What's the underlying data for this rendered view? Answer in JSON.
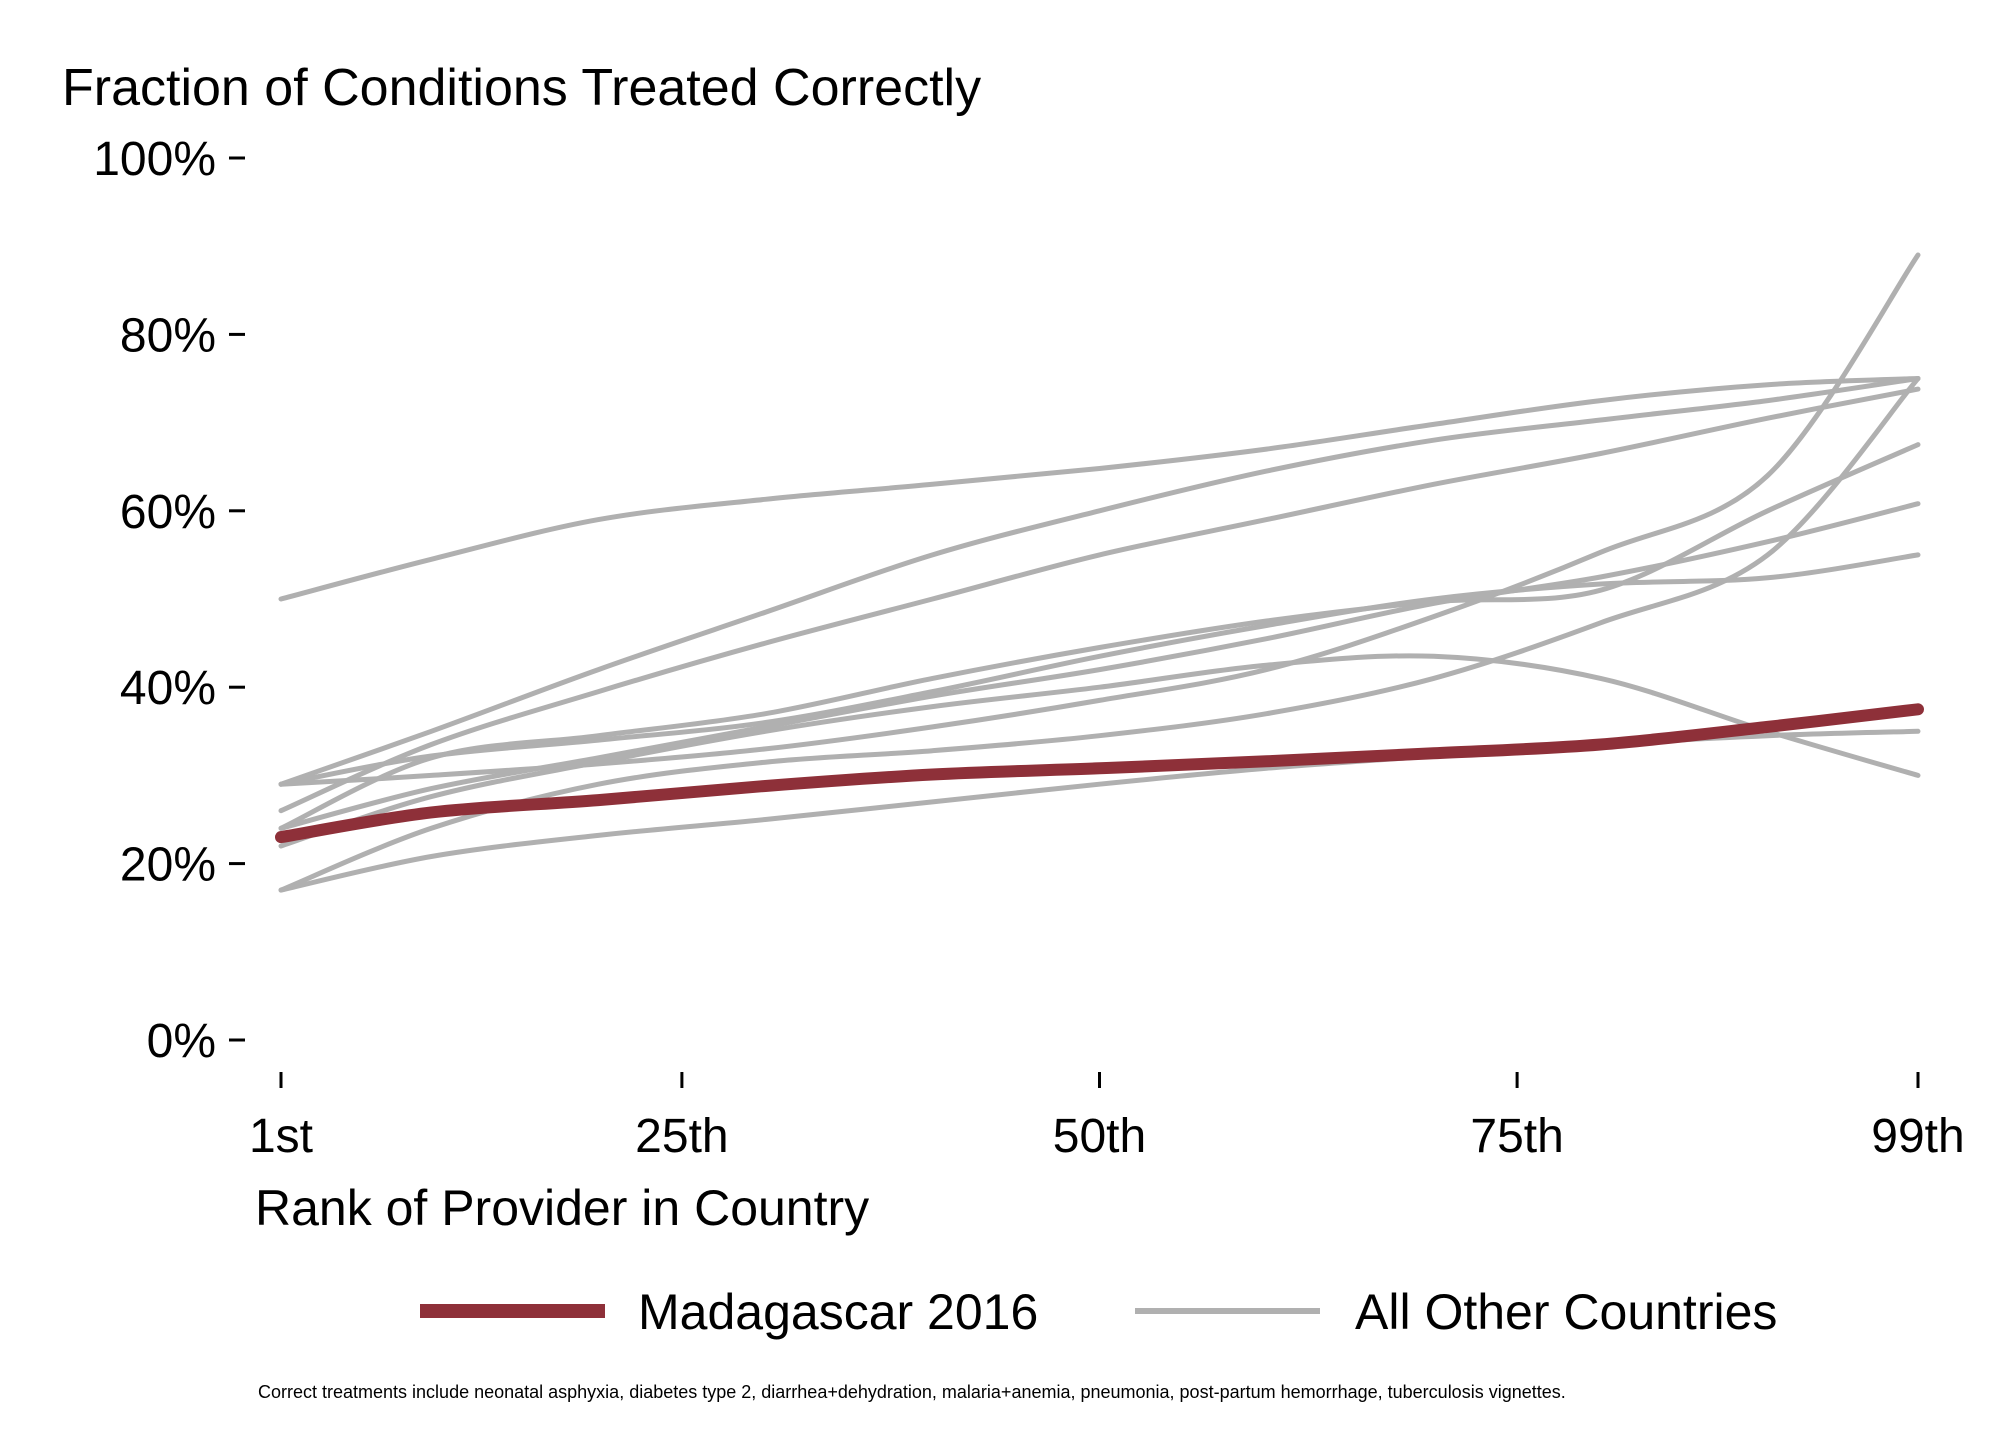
{
  "chart_data": {
    "type": "line",
    "title": "Fraction of Conditions Treated Correctly",
    "xlabel": "Rank of Provider in Country",
    "ylabel": "",
    "x_tick_labels": [
      "1st",
      "25th",
      "50th",
      "75th",
      "99th"
    ],
    "x_ticks": [
      1,
      25,
      50,
      75,
      99
    ],
    "xlim": [
      1,
      99
    ],
    "y_tick_labels": [
      "0%",
      "20%",
      "40%",
      "60%",
      "80%",
      "100%"
    ],
    "y_ticks": [
      0,
      20,
      40,
      60,
      80,
      100
    ],
    "ylim": [
      0,
      100
    ],
    "grid": false,
    "legend_position": "bottom",
    "legend": [
      {
        "label": "Madagascar 2016",
        "color": "#8e3039"
      },
      {
        "label": "All Other Countries",
        "color": "#b0b0b0"
      }
    ],
    "note": "Correct treatments include neonatal asphyxia, diabetes type 2, diarrhea+dehydration, malaria+anemia, pneumonia, post-partum hemorrhage, tuberculosis vignettes.",
    "highlight_series": {
      "name": "Madagascar 2016",
      "color": "#8e3039",
      "x": [
        1,
        10,
        20,
        30,
        40,
        50,
        60,
        70,
        80,
        90,
        99
      ],
      "y": [
        23,
        25.8,
        27.2,
        28.8,
        30.1,
        30.8,
        31.6,
        32.5,
        33.5,
        35.5,
        37.5
      ]
    },
    "series": [
      {
        "x": [
          1,
          10,
          20,
          30,
          40,
          50,
          60,
          70,
          80,
          90,
          99
        ],
        "y": [
          50,
          54.5,
          59,
          61.3,
          63,
          64.8,
          67,
          69.8,
          72.5,
          74.3,
          75
        ]
      },
      {
        "x": [
          1,
          10,
          20,
          30,
          40,
          50,
          60,
          70,
          80,
          90,
          99
        ],
        "y": [
          17,
          24,
          29,
          31.5,
          32.8,
          34.5,
          37,
          41,
          47.3,
          55,
          75
        ]
      },
      {
        "x": [
          1,
          10,
          20,
          30,
          40,
          50,
          60,
          70,
          80,
          90,
          99
        ],
        "y": [
          29,
          30,
          31.3,
          33,
          35.5,
          38.5,
          42,
          48,
          55.3,
          64,
          89
        ]
      },
      {
        "x": [
          1,
          10,
          20,
          30,
          40,
          50,
          60,
          70,
          80,
          90,
          99
        ],
        "y": [
          26,
          33.5,
          39.5,
          45,
          50,
          55,
          59,
          63,
          66.5,
          70.5,
          73.8
        ]
      },
      {
        "x": [
          1,
          10,
          20,
          30,
          40,
          50,
          60,
          70,
          80,
          90,
          99
        ],
        "y": [
          24,
          28.5,
          32,
          35.5,
          39,
          42,
          45.5,
          49.5,
          52.5,
          56.5,
          60.8
        ]
      },
      {
        "x": [
          1,
          10,
          20,
          30,
          40,
          50,
          60,
          70,
          80,
          90,
          99
        ],
        "y": [
          22,
          27.6,
          31.5,
          35,
          37.8,
          40,
          42.5,
          43.5,
          41,
          35,
          30
        ]
      },
      {
        "x": [
          1,
          10,
          20,
          30,
          40,
          50,
          60,
          70,
          80,
          90,
          99
        ],
        "y": [
          17,
          20.8,
          23.2,
          25,
          27,
          29,
          30.8,
          32.2,
          33.5,
          34.5,
          35
        ]
      },
      {
        "x": [
          1,
          10,
          20,
          30,
          40,
          50,
          60,
          70,
          80,
          90,
          99
        ],
        "y": [
          29,
          32.2,
          34,
          36,
          39.5,
          43.5,
          47,
          50,
          51.7,
          52.4,
          55
        ]
      },
      {
        "x": [
          1,
          10,
          20,
          30,
          40,
          50,
          60,
          70,
          80,
          90,
          99
        ],
        "y": [
          24,
          32,
          34.5,
          37,
          41,
          44.5,
          47.5,
          49.7,
          51,
          60,
          67.5
        ]
      },
      {
        "x": [
          1,
          10,
          20,
          30,
          40,
          50,
          60,
          70,
          80,
          90,
          99
        ],
        "y": [
          29,
          35,
          42,
          48.5,
          55,
          60,
          64.5,
          68,
          70.3,
          72.5,
          75
        ]
      }
    ]
  }
}
